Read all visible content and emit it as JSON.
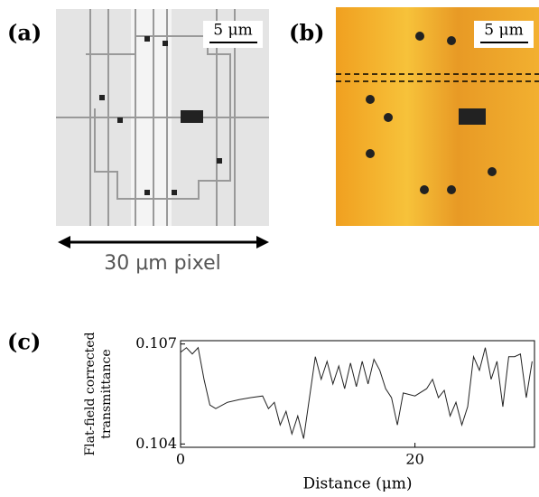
{
  "panel_labels": [
    "(a)",
    "(b)",
    "(c)"
  ],
  "scale_bars": [
    "5 μm",
    "5 μm"
  ],
  "pixel_label": "30 μm pixel",
  "chart_data": {
    "type": "line",
    "ylabel": [
      "Flat-field corrected",
      "transmittance"
    ],
    "xlabel": "Distance (μm)",
    "xlim": [
      0,
      30.2
    ],
    "ylim": [
      0.1039,
      0.1071
    ],
    "xticks": [
      0,
      20
    ],
    "yticks": [
      0.104,
      0.107
    ],
    "x": [
      0,
      0.5,
      1,
      1.5,
      2,
      2.5,
      3,
      4,
      5,
      6,
      7,
      7.5,
      8,
      8.5,
      9,
      9.5,
      10,
      10.5,
      11,
      11.5,
      12,
      12.5,
      13,
      13.5,
      14,
      14.5,
      15,
      15.5,
      16,
      16.5,
      17,
      17.5,
      18,
      18.5,
      19,
      20,
      21,
      21.5,
      22,
      22.5,
      23,
      23.5,
      24,
      24.5,
      25,
      25.5,
      26,
      26.5,
      27,
      27.5,
      28,
      28.5,
      29,
      29.5,
      30
    ],
    "series": [
      {
        "color": "#222222",
        "values": [
          0.10675,
          0.10689,
          0.1067,
          0.10689,
          0.10594,
          0.10517,
          0.10506,
          0.10525,
          0.10533,
          0.10539,
          0.10544,
          0.10506,
          0.10525,
          0.10457,
          0.10498,
          0.1043,
          0.10484,
          0.10416,
          0.10539,
          0.10662,
          0.10594,
          0.10648,
          0.1058,
          0.10634,
          0.10566,
          0.10643,
          0.10572,
          0.10648,
          0.1058,
          0.10654,
          0.10621,
          0.10566,
          0.10539,
          0.10457,
          0.10553,
          0.10544,
          0.10566,
          0.10594,
          0.10539,
          0.10561,
          0.10484,
          0.10525,
          0.10457,
          0.10512,
          0.10662,
          0.10621,
          0.10689,
          0.10594,
          0.10648,
          0.10512,
          0.10662,
          0.10662,
          0.1067,
          0.10539,
          0.10648
        ]
      }
    ]
  }
}
